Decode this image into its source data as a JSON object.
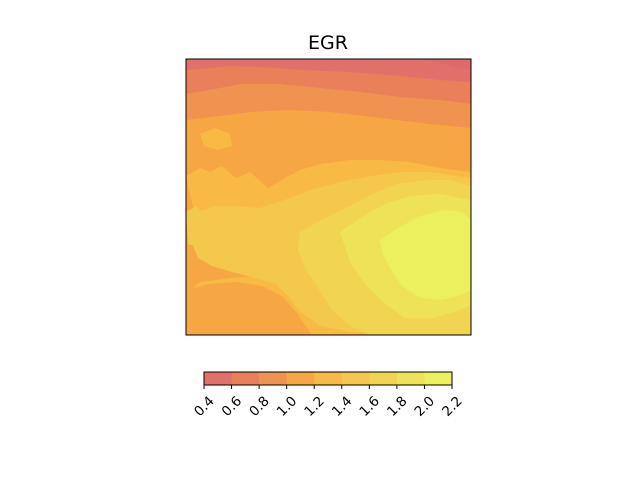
{
  "chart_data": {
    "type": "filled-contour",
    "title": "EGR",
    "xlabel": "",
    "ylabel": "",
    "axes_ticks_visible": false,
    "grid": false,
    "colorbar": {
      "orientation": "horizontal",
      "placement": "below",
      "levels": [
        0.4,
        0.6,
        0.8,
        1.0,
        1.2,
        1.4,
        1.6,
        1.8,
        2.0,
        2.2
      ],
      "tick_labels": [
        "0.4",
        "0.6",
        "0.8",
        "1.0",
        "1.2",
        "1.4",
        "1.6",
        "1.8",
        "2.0",
        "2.2"
      ],
      "band_colors": [
        "#e2706a",
        "#e9805a",
        "#f19350",
        "#f6a642",
        "#f8b945",
        "#f4c74d",
        "#f1d451",
        "#eee258",
        "#ecf05f"
      ],
      "tick_label_rotation_deg": 45
    },
    "field_description": "values increase from ~0.6 along the top edge to ~2.1 in the right-center region; left and bottom-left areas around 1.0-1.4"
  }
}
